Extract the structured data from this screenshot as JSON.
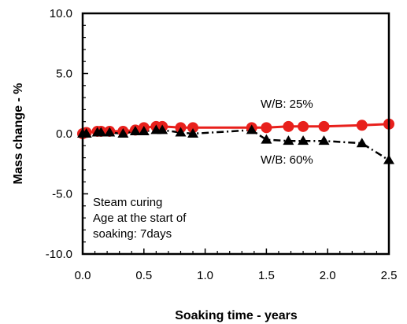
{
  "chart_data": {
    "type": "line",
    "xlabel": "Soaking time - years",
    "ylabel": "Mass change - %",
    "xlim": [
      0.0,
      2.5
    ],
    "ylim": [
      -10.0,
      10.0
    ],
    "x_ticks": [
      "0.0",
      "0.5",
      "1.0",
      "1.5",
      "2.0",
      "2.5"
    ],
    "y_ticks": [
      "10.0",
      "5.0",
      "0.0",
      "-5.0",
      "-10.0"
    ],
    "grid": false,
    "series": [
      {
        "name": "W/B: 25%",
        "marker": "circle",
        "line_style": "solid",
        "color": "#e8201c",
        "x": [
          0.0,
          0.03,
          0.12,
          0.15,
          0.22,
          0.33,
          0.43,
          0.5,
          0.6,
          0.65,
          0.8,
          0.9,
          1.38,
          1.5,
          1.68,
          1.8,
          1.97,
          2.28,
          2.5
        ],
        "y": [
          0.0,
          0.1,
          0.2,
          0.2,
          0.2,
          0.2,
          0.3,
          0.5,
          0.6,
          0.6,
          0.5,
          0.5,
          0.5,
          0.5,
          0.6,
          0.6,
          0.6,
          0.7,
          0.8
        ]
      },
      {
        "name": "W/B: 60%",
        "marker": "triangle",
        "line_style": "dash-dot",
        "color": "#000000",
        "x": [
          0.0,
          0.03,
          0.12,
          0.15,
          0.22,
          0.33,
          0.43,
          0.5,
          0.6,
          0.65,
          0.8,
          0.9,
          1.38,
          1.5,
          1.68,
          1.8,
          1.97,
          2.28,
          2.5
        ],
        "y": [
          0.0,
          0.0,
          0.1,
          0.1,
          0.1,
          0.0,
          0.2,
          0.2,
          0.3,
          0.3,
          0.1,
          0.0,
          0.3,
          -0.5,
          -0.6,
          -0.6,
          -0.6,
          -0.8,
          -2.2
        ]
      }
    ],
    "annotations": {
      "series1_label": "W/B: 25%",
      "series2_label": "W/B: 60%",
      "condition_line1": "Steam curing",
      "condition_line2": "Age at the start of",
      "condition_line3": "soaking: 7days"
    }
  }
}
